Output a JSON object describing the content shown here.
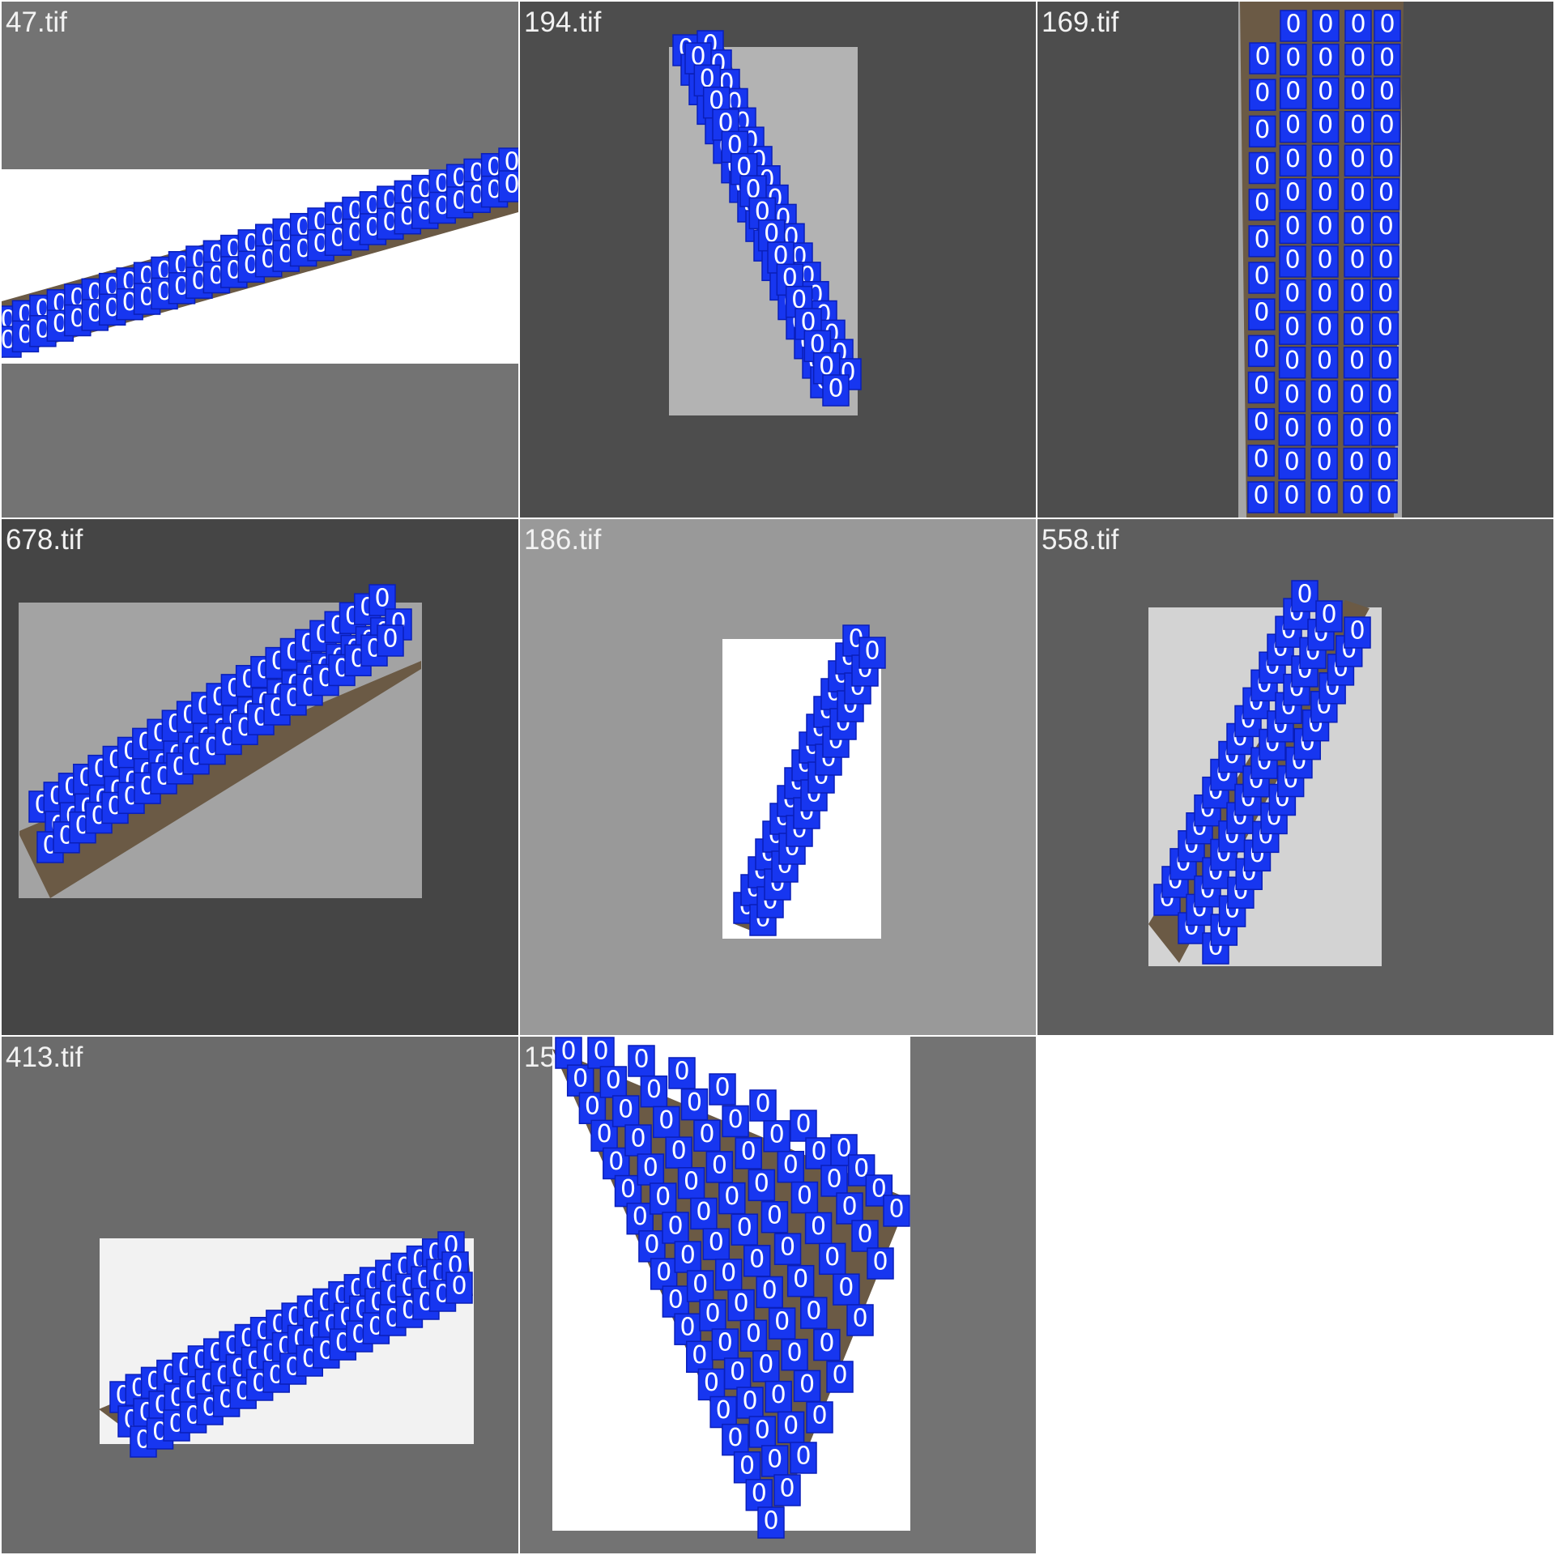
{
  "tiles": [
    {
      "filename": "47.tif",
      "background": "#737373",
      "image_area": "#ffffff"
    },
    {
      "filename": "194.tif",
      "background": "#4d4d4d",
      "image_area": "#b3b3b3"
    },
    {
      "filename": "169.tif",
      "background": "#4d4d4d",
      "image_area": "#a6a6a6"
    },
    {
      "filename": "678.tif",
      "background": "#454545",
      "image_area": "#a3a3a3"
    },
    {
      "filename": "186.tif",
      "background": "#999999",
      "image_area": "#ffffff"
    },
    {
      "filename": "558.tif",
      "background": "#5e5e5e",
      "image_area": "#d3d3d3"
    },
    {
      "filename": "413.tif",
      "background": "#6b6b6b",
      "image_area": "#f2f2f2"
    },
    {
      "filename": "15",
      "background": "#737373",
      "image_area": "#ffffff"
    }
  ],
  "detection": {
    "class_label": "0",
    "box_color": "#1736f0",
    "text_color": "#ffffff"
  }
}
